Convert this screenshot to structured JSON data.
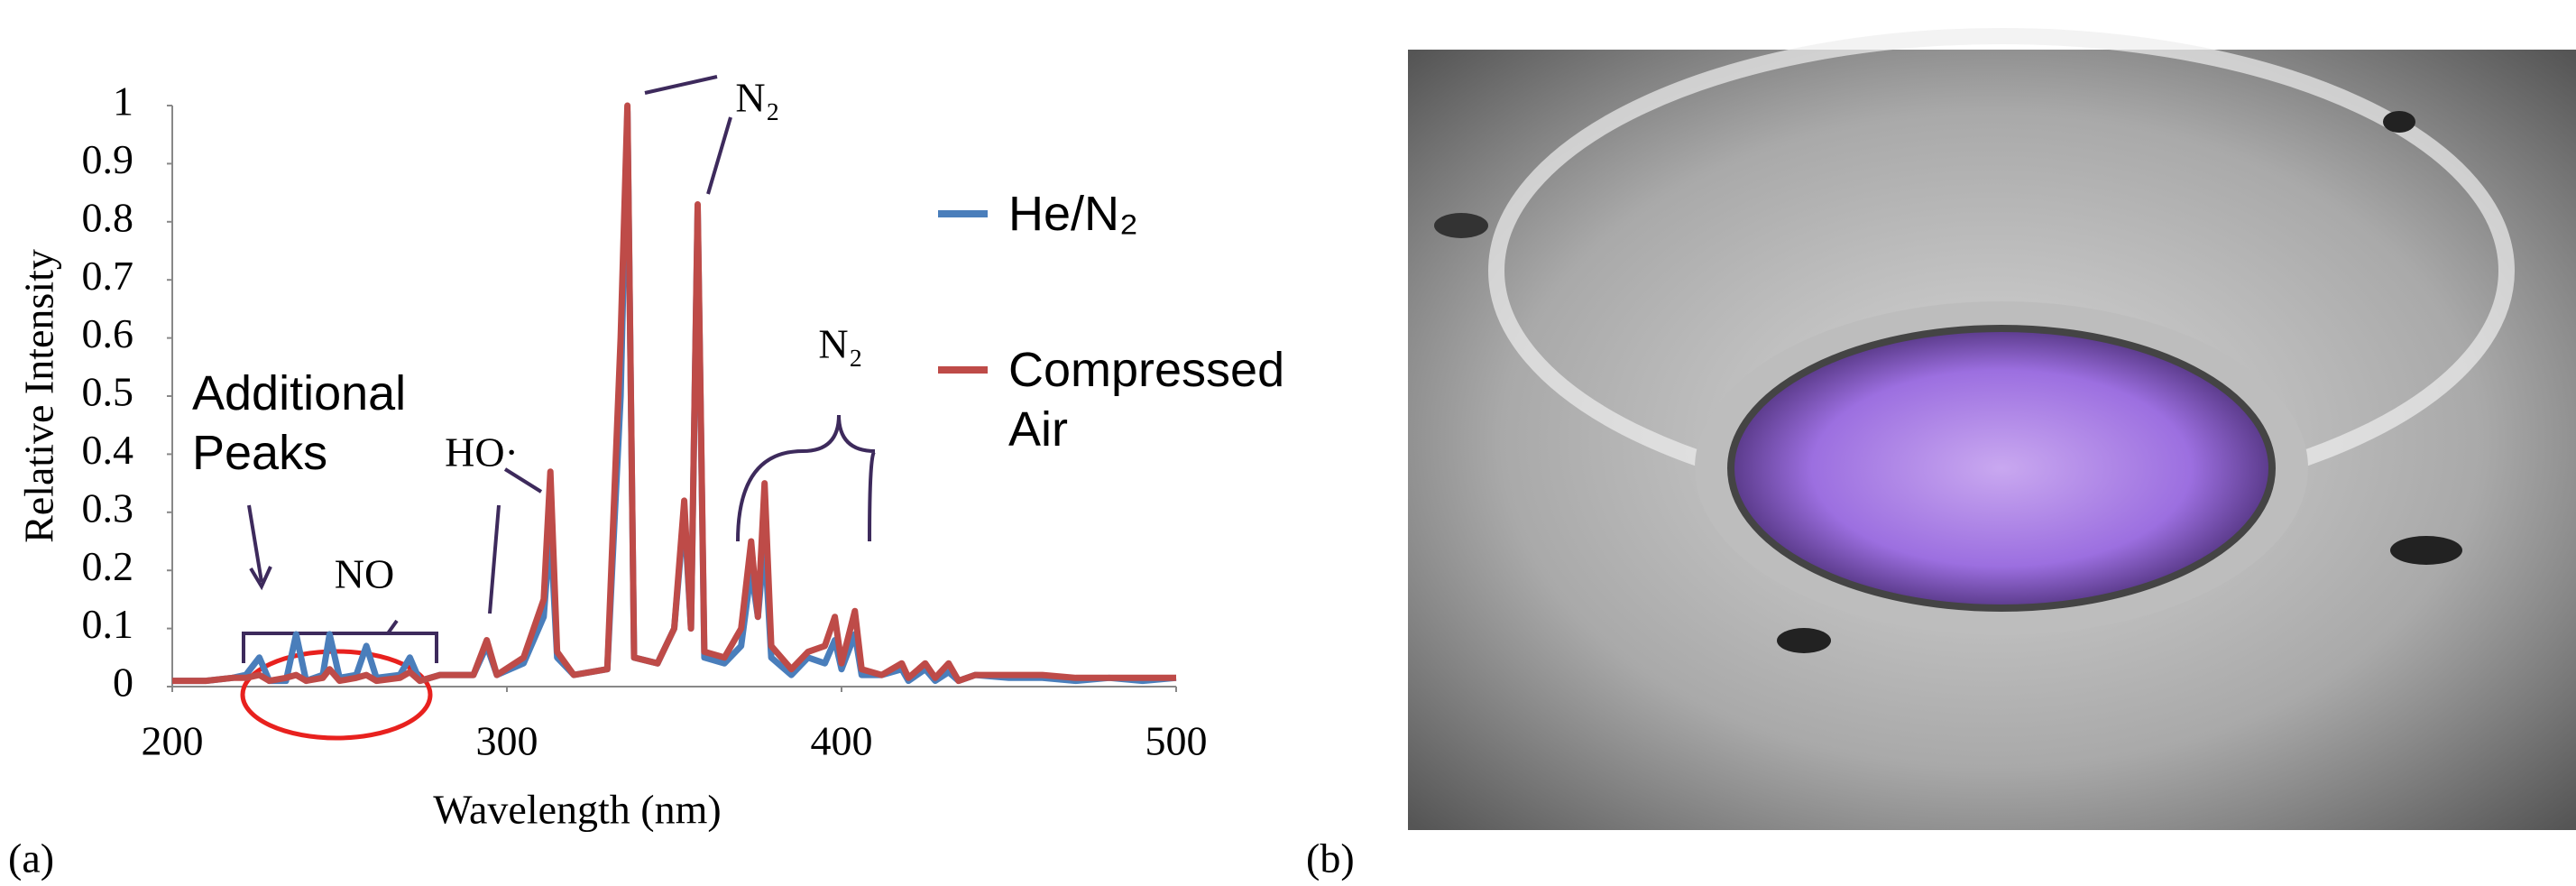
{
  "chart_data": {
    "type": "line",
    "x_label": "Wavelength (nm)",
    "y_label": "Relative Intensity",
    "x": [
      200,
      210,
      218,
      222,
      226,
      229,
      234,
      237,
      240,
      245,
      247,
      250,
      255,
      258,
      261,
      268,
      271,
      274,
      280,
      290,
      294,
      297,
      305,
      311,
      313,
      315,
      320,
      330,
      334,
      336,
      338,
      345,
      350,
      353,
      355,
      357,
      359,
      365,
      370,
      373,
      375,
      377,
      379,
      385,
      390,
      395,
      398,
      400,
      404,
      406,
      412,
      418,
      420,
      425,
      428,
      432,
      435,
      440,
      450,
      460,
      470,
      480,
      490,
      500
    ],
    "series": [
      {
        "name": "He/N₂",
        "color": "#4a7ebb",
        "values": [
          0.01,
          0.01,
          0.015,
          0.02,
          0.05,
          0.01,
          0.01,
          0.09,
          0.01,
          0.02,
          0.09,
          0.015,
          0.02,
          0.07,
          0.015,
          0.02,
          0.05,
          0.01,
          0.02,
          0.02,
          0.07,
          0.02,
          0.04,
          0.12,
          0.27,
          0.05,
          0.02,
          0.03,
          0.5,
          0.99,
          0.05,
          0.04,
          0.1,
          0.3,
          0.1,
          0.82,
          0.05,
          0.04,
          0.07,
          0.2,
          0.12,
          0.25,
          0.05,
          0.02,
          0.05,
          0.04,
          0.08,
          0.03,
          0.09,
          0.02,
          0.02,
          0.03,
          0.01,
          0.03,
          0.01,
          0.025,
          0.01,
          0.02,
          0.015,
          0.015,
          0.01,
          0.015,
          0.01,
          0.015
        ]
      },
      {
        "name": "Compressed Air",
        "color": "#be4b48",
        "values": [
          0.01,
          0.01,
          0.015,
          0.015,
          0.02,
          0.01,
          0.015,
          0.02,
          0.01,
          0.015,
          0.03,
          0.01,
          0.015,
          0.02,
          0.01,
          0.015,
          0.025,
          0.01,
          0.02,
          0.02,
          0.08,
          0.02,
          0.05,
          0.15,
          0.37,
          0.06,
          0.02,
          0.03,
          0.6,
          1.0,
          0.05,
          0.04,
          0.1,
          0.32,
          0.1,
          0.83,
          0.06,
          0.05,
          0.1,
          0.25,
          0.12,
          0.35,
          0.07,
          0.03,
          0.06,
          0.07,
          0.12,
          0.04,
          0.13,
          0.03,
          0.02,
          0.04,
          0.015,
          0.04,
          0.015,
          0.04,
          0.01,
          0.02,
          0.02,
          0.02,
          0.015,
          0.015,
          0.015,
          0.015
        ]
      }
    ],
    "xlim": [
      200,
      500
    ],
    "xticks": [
      200,
      300,
      400,
      500
    ],
    "ylim": [
      0,
      1
    ],
    "yticks": [
      0,
      0.1,
      0.2,
      0.3,
      0.4,
      0.5,
      0.6,
      0.7,
      0.8,
      0.9,
      1
    ],
    "annotations": [
      "Additional Peaks",
      "NO",
      "HO·",
      "N₂",
      "N₂"
    ],
    "panel_labels": [
      "(a)",
      "(b)"
    ]
  }
}
